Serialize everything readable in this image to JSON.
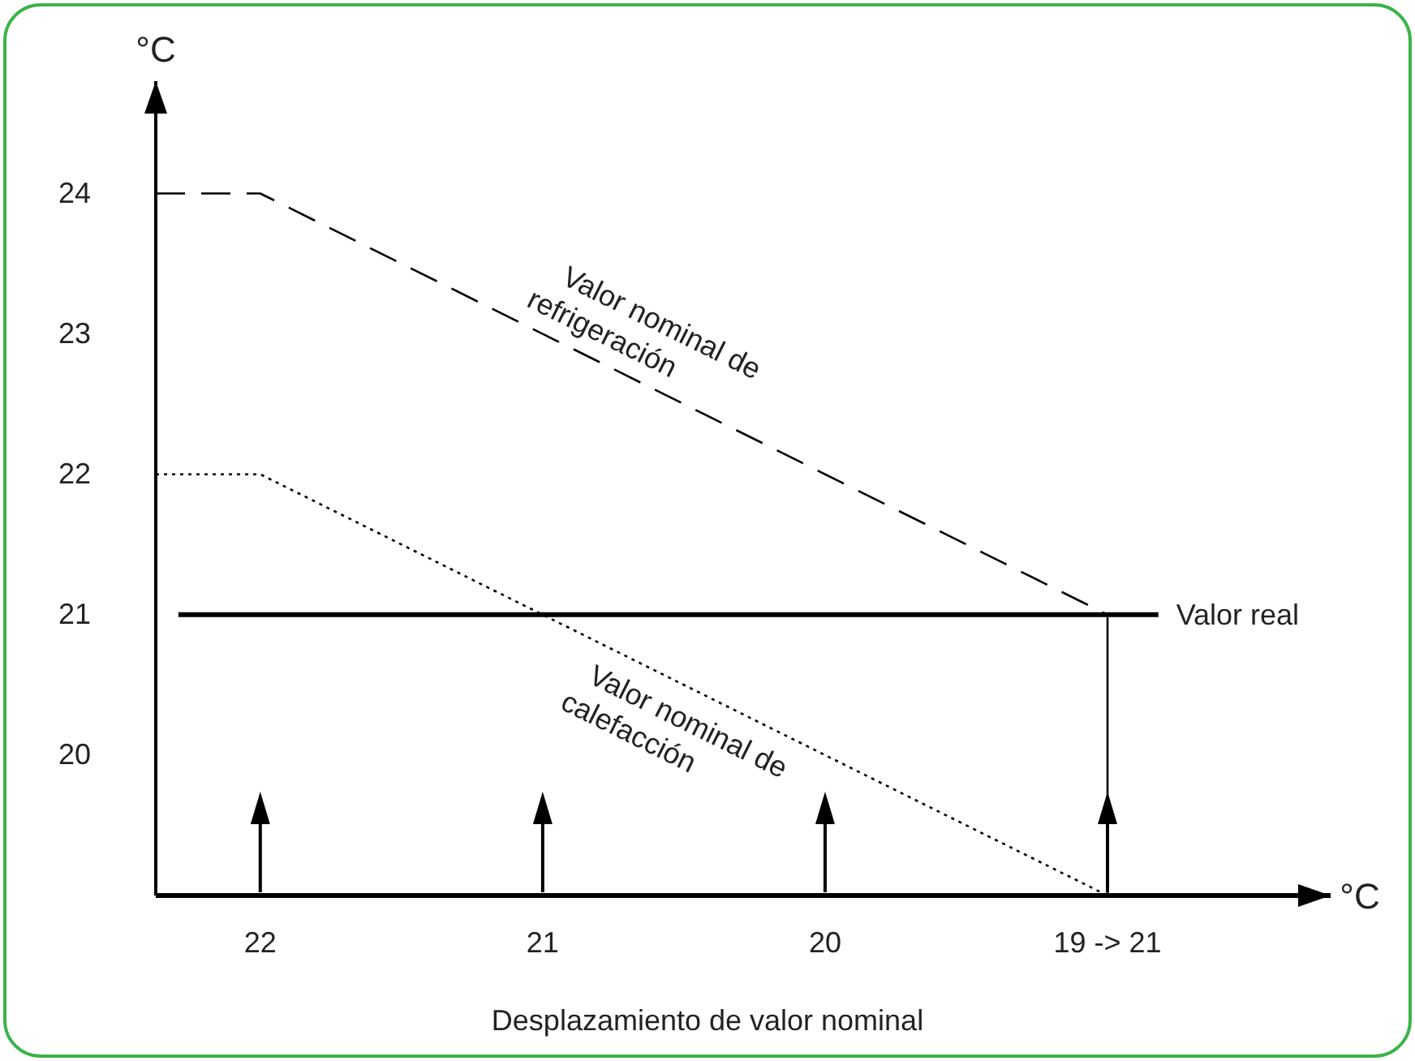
{
  "chart_data": {
    "type": "line",
    "ylabel": "°C",
    "xlabel": "Desplazamiento de valor nominal",
    "series": [
      {
        "name": "Valor nominal de refrigeración",
        "color": "#000000",
        "line_style": "dashed",
        "x": [
          22.37,
          22,
          19
        ],
        "values": [
          24,
          24,
          21
        ]
      },
      {
        "name": "Valor nominal de calefacción",
        "color": "#000000",
        "line_style": "dotted",
        "x": [
          22.37,
          22,
          19
        ],
        "values": [
          22,
          22,
          19
        ]
      },
      {
        "name": "Valor real",
        "color": "#000000",
        "line_style": "solid",
        "x": [
          22.29,
          18.82
        ],
        "values": [
          21,
          21
        ]
      }
    ],
    "ref_lines": [
      {
        "axis": "x",
        "value": 19,
        "color": "#000000"
      }
    ],
    "xlim": [
      22.37,
      18.21
    ],
    "xticks": [
      22,
      21,
      20,
      {
        "value": 19,
        "label": "19 -> 21"
      }
    ],
    "ylim": [
      19,
      24.8
    ],
    "yticks": [
      20,
      21,
      22,
      23,
      24
    ],
    "annotations": [
      "°C"
    ],
    "grid": false,
    "legend": false,
    "marker": "none"
  }
}
